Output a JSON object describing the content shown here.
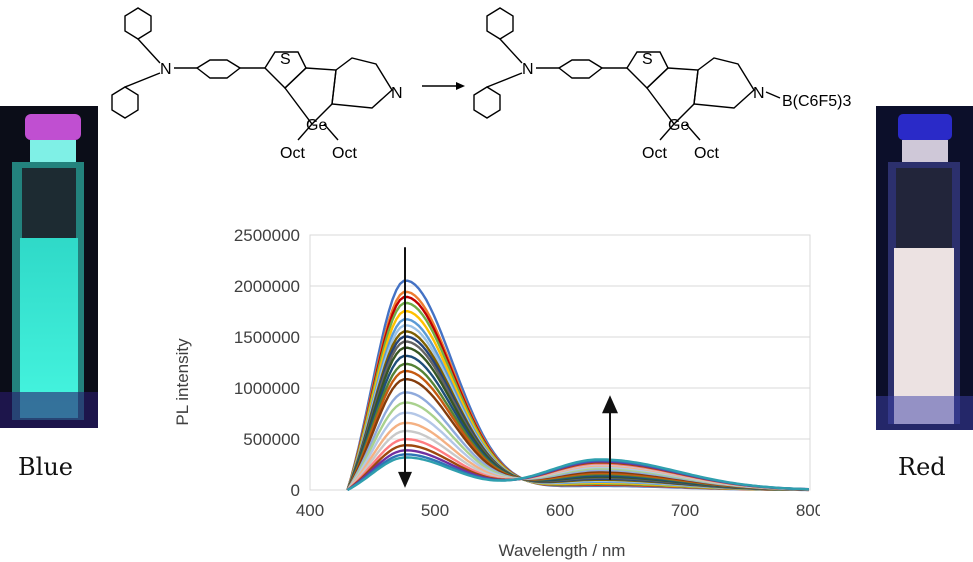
{
  "vials": {
    "left_caption": "Blue",
    "right_caption": "Red",
    "left_glow_color": "#3ef2dc",
    "right_glow_color": "#f2e4e0"
  },
  "scheme": {
    "reactant": {
      "heteroatoms": [
        "N",
        "S",
        "N",
        "Ge"
      ],
      "substituents": [
        "Oct",
        "Oct"
      ]
    },
    "product": {
      "heteroatoms": [
        "N",
        "S",
        "N",
        "Ge"
      ],
      "substituents": [
        "Oct",
        "Oct"
      ],
      "borane": "B(C6F5)3"
    }
  },
  "chart_data": {
    "type": "line",
    "xlabel": "Wavelength / nm",
    "ylabel": "PL intensity",
    "xlim": [
      400,
      800
    ],
    "ylim": [
      0,
      2500000
    ],
    "x_ticks": [
      "400",
      "500",
      "600",
      "700",
      "800"
    ],
    "y_ticks": [
      "0",
      "500000",
      "1000000",
      "1500000",
      "2000000",
      "2500000"
    ],
    "grid": "horizontal",
    "x_range_of_curves": [
      430,
      800
    ],
    "series_peak_values": [
      {
        "color": "#4472c4",
        "peak_475": 2060000,
        "peak_630": 40000
      },
      {
        "color": "#ed7d31",
        "peak_475": 1950000,
        "peak_630": 50000
      },
      {
        "color": "#c00000",
        "peak_475": 1900000,
        "peak_630": 55000
      },
      {
        "color": "#70ad47",
        "peak_475": 1840000,
        "peak_630": 60000
      },
      {
        "color": "#ffc000",
        "peak_475": 1760000,
        "peak_630": 70000
      },
      {
        "color": "#5b9bd5",
        "peak_475": 1680000,
        "peak_630": 80000
      },
      {
        "color": "#9dc3e6",
        "peak_475": 1620000,
        "peak_630": 90000
      },
      {
        "color": "#7f6000",
        "peak_475": 1560000,
        "peak_630": 100000
      },
      {
        "color": "#264478",
        "peak_475": 1510000,
        "peak_630": 110000
      },
      {
        "color": "#636363",
        "peak_475": 1460000,
        "peak_630": 120000
      },
      {
        "color": "#375623",
        "peak_475": 1400000,
        "peak_630": 130000
      },
      {
        "color": "#1f4e79",
        "peak_475": 1320000,
        "peak_630": 140000
      },
      {
        "color": "#548235",
        "peak_475": 1240000,
        "peak_630": 155000
      },
      {
        "color": "#c55a11",
        "peak_475": 1170000,
        "peak_630": 165000
      },
      {
        "color": "#843c0c",
        "peak_475": 1090000,
        "peak_630": 180000
      },
      {
        "color": "#8faadc",
        "peak_475": 960000,
        "peak_630": 195000
      },
      {
        "color": "#a9d18e",
        "peak_475": 860000,
        "peak_630": 210000
      },
      {
        "color": "#b4c7e7",
        "peak_475": 760000,
        "peak_630": 225000
      },
      {
        "color": "#f4b183",
        "peak_475": 660000,
        "peak_630": 240000
      },
      {
        "color": "#c9c9c9",
        "peak_475": 580000,
        "peak_630": 250000
      },
      {
        "color": "#ff7c80",
        "peak_475": 500000,
        "peak_630": 260000
      },
      {
        "color": "#9e480e",
        "peak_475": 440000,
        "peak_630": 270000
      },
      {
        "color": "#7030a0",
        "peak_475": 390000,
        "peak_630": 280000
      },
      {
        "color": "#2e75b6",
        "peak_475": 350000,
        "peak_630": 290000
      },
      {
        "color": "#2f9fae",
        "peak_475": 320000,
        "peak_630": 300000
      }
    ],
    "annotations": [
      {
        "type": "arrow",
        "direction": "down",
        "at_x": 476,
        "from_y": 2380000,
        "to_y": 60000
      },
      {
        "type": "arrow",
        "direction": "up",
        "at_x": 640,
        "from_y": 100000,
        "to_y": 870000
      }
    ]
  }
}
